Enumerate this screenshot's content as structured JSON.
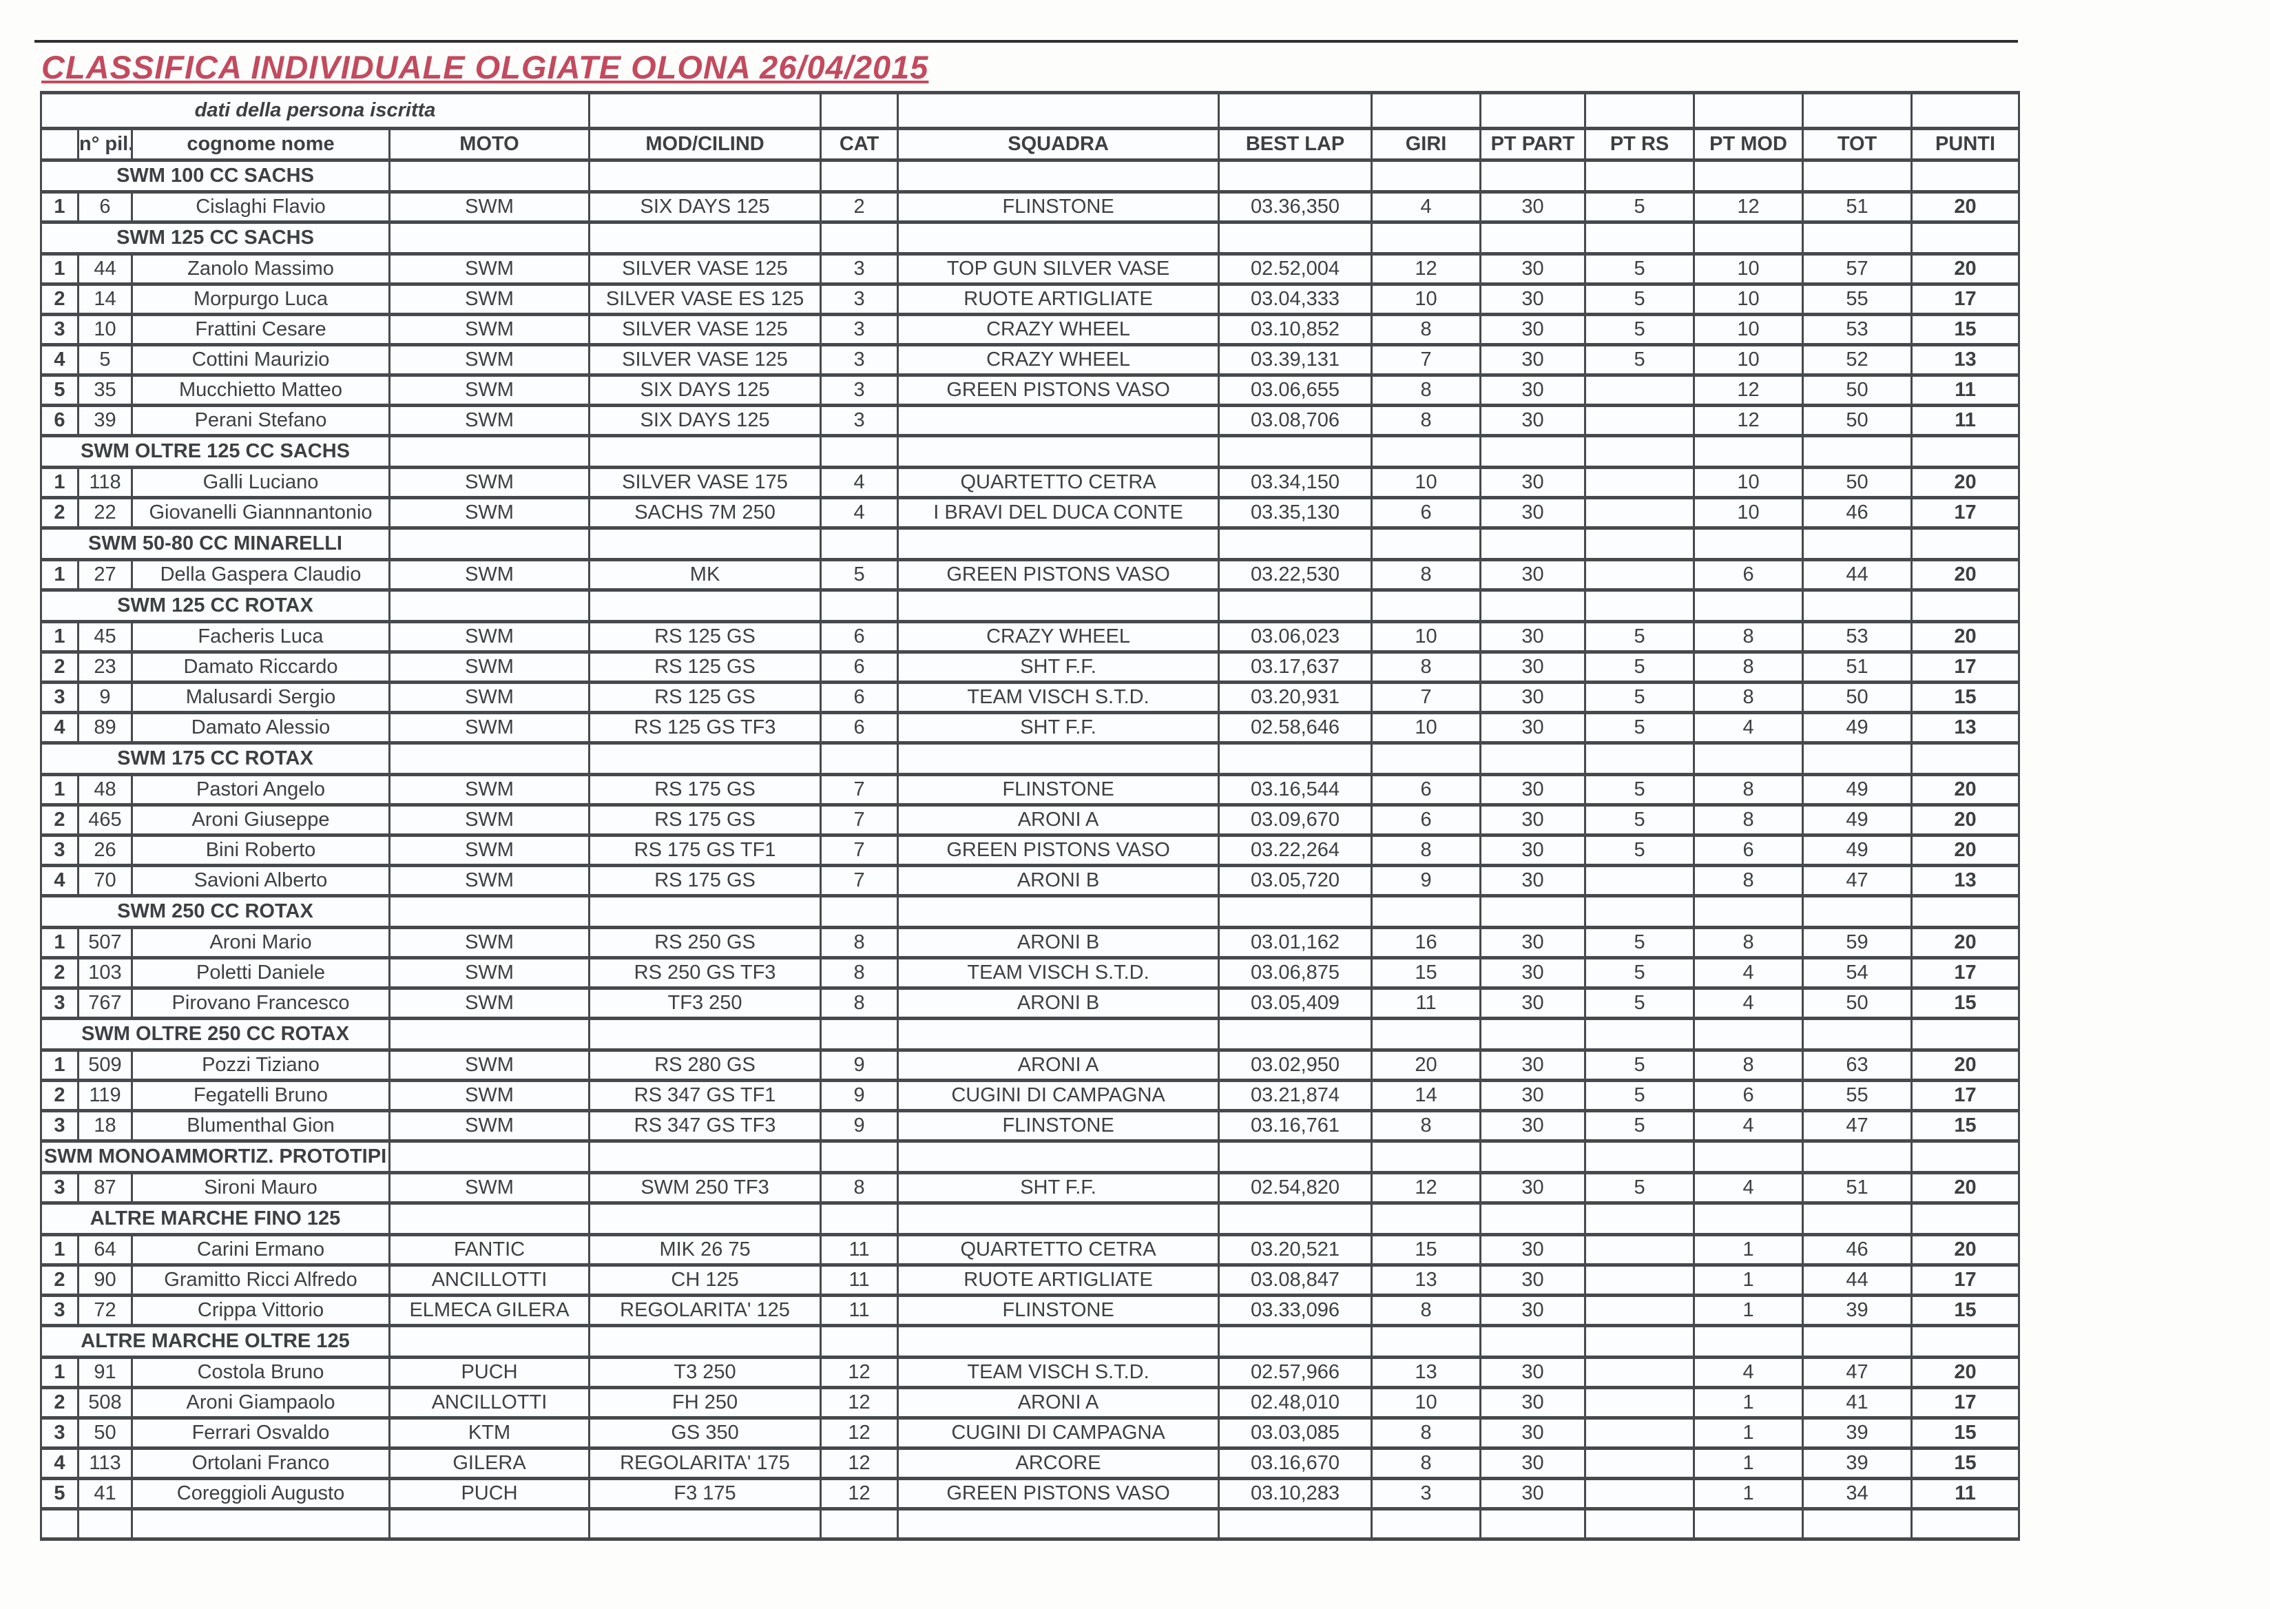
{
  "title": "CLASSIFICA INDIVIDUALE OLGIATE OLONA 26/04/2015",
  "header": {
    "group_label": "dati della persona iscritta",
    "columns": [
      "n° pil.",
      "cognome nome",
      "MOTO",
      "MOD/CILIND",
      "CAT",
      "SQUADRA",
      "BEST LAP",
      "GIRI",
      "PT PART",
      "PT RS",
      "PT MOD",
      "TOT",
      "PUNTI"
    ]
  },
  "colors": {
    "title_red": "#c34a5e",
    "section_red": "#c64b5f",
    "position_red": "#c64b5f",
    "header_blue": "#3d63b0",
    "punti_blue": "#3a69c1",
    "body_text": "#3d4043",
    "grid_border": "#46494d",
    "highlight_tan": "#e8c295"
  },
  "sections": [
    {
      "label": "SWM 100 CC SACHS",
      "rows": [
        {
          "pos": "1",
          "num": "6",
          "name": "Cislaghi Flavio",
          "moto": "SWM",
          "mod": "SIX DAYS 125",
          "cat": "2",
          "squadra": "FLINSTONE",
          "best_lap": "03.36,350",
          "giri": "4",
          "pt_part": "30",
          "pt_rs": "5",
          "pt_mod": "12",
          "tot": "51",
          "punti": "20",
          "num_highlight": false
        }
      ]
    },
    {
      "label": "SWM 125 CC SACHS",
      "rows": [
        {
          "pos": "1",
          "num": "44",
          "name": "Zanolo Massimo",
          "moto": "SWM",
          "mod": "SILVER VASE 125",
          "cat": "3",
          "squadra": "TOP GUN SILVER VASE",
          "best_lap": "02.52,004",
          "giri": "12",
          "pt_part": "30",
          "pt_rs": "5",
          "pt_mod": "10",
          "tot": "57",
          "punti": "20",
          "num_highlight": false
        },
        {
          "pos": "2",
          "num": "14",
          "name": "Morpurgo Luca",
          "moto": "SWM",
          "mod": "SILVER VASE ES 125",
          "cat": "3",
          "squadra": "RUOTE ARTIGLIATE",
          "best_lap": "03.04,333",
          "giri": "10",
          "pt_part": "30",
          "pt_rs": "5",
          "pt_mod": "10",
          "tot": "55",
          "punti": "17",
          "num_highlight": false
        },
        {
          "pos": "3",
          "num": "10",
          "name": "Frattini Cesare",
          "moto": "SWM",
          "mod": "SILVER VASE 125",
          "cat": "3",
          "squadra": "CRAZY WHEEL",
          "best_lap": "03.10,852",
          "giri": "8",
          "pt_part": "30",
          "pt_rs": "5",
          "pt_mod": "10",
          "tot": "53",
          "punti": "15",
          "num_highlight": false
        },
        {
          "pos": "4",
          "num": "5",
          "name": "Cottini Maurizio",
          "moto": "SWM",
          "mod": "SILVER VASE 125",
          "cat": "3",
          "squadra": "CRAZY WHEEL",
          "best_lap": "03.39,131",
          "giri": "7",
          "pt_part": "30",
          "pt_rs": "5",
          "pt_mod": "10",
          "tot": "52",
          "punti": "13",
          "num_highlight": false
        },
        {
          "pos": "5",
          "num": "35",
          "name": "Mucchietto Matteo",
          "moto": "SWM",
          "mod": "SIX DAYS 125",
          "cat": "3",
          "squadra": "GREEN PISTONS VASO",
          "best_lap": "03.06,655",
          "giri": "8",
          "pt_part": "30",
          "pt_rs": "",
          "pt_mod": "12",
          "tot": "50",
          "punti": "11",
          "num_highlight": false
        },
        {
          "pos": "6",
          "num": "39",
          "name": "Perani Stefano",
          "moto": "SWM",
          "mod": "SIX DAYS 125",
          "cat": "3",
          "squadra": "",
          "best_lap": "03.08,706",
          "giri": "8",
          "pt_part": "30",
          "pt_rs": "",
          "pt_mod": "12",
          "tot": "50",
          "punti": "11",
          "num_highlight": false
        }
      ]
    },
    {
      "label": "SWM OLTRE 125 CC SACHS",
      "rows": [
        {
          "pos": "1",
          "num": "118",
          "name": "Galli Luciano",
          "moto": "SWM",
          "mod": "SILVER VASE 175",
          "cat": "4",
          "squadra": "QUARTETTO CETRA",
          "best_lap": "03.34,150",
          "giri": "10",
          "pt_part": "30",
          "pt_rs": "",
          "pt_mod": "10",
          "tot": "50",
          "punti": "20",
          "num_highlight": false
        },
        {
          "pos": "2",
          "num": "22",
          "name": "Giovanelli Giannnantonio",
          "moto": "SWM",
          "mod": "SACHS 7M 250",
          "cat": "4",
          "squadra": "I BRAVI DEL DUCA CONTE",
          "best_lap": "03.35,130",
          "giri": "6",
          "pt_part": "30",
          "pt_rs": "",
          "pt_mod": "10",
          "tot": "46",
          "punti": "17",
          "num_highlight": false
        }
      ]
    },
    {
      "label": "SWM 50-80 CC MINARELLI",
      "rows": [
        {
          "pos": "1",
          "num": "27",
          "name": "Della Gaspera Claudio",
          "moto": "SWM",
          "mod": "MK",
          "cat": "5",
          "squadra": "GREEN PISTONS VASO",
          "best_lap": "03.22,530",
          "giri": "8",
          "pt_part": "30",
          "pt_rs": "",
          "pt_mod": "6",
          "tot": "44",
          "punti": "20",
          "num_highlight": false
        }
      ]
    },
    {
      "label": "SWM 125 CC ROTAX",
      "rows": [
        {
          "pos": "1",
          "num": "45",
          "name": "Facheris Luca",
          "moto": "SWM",
          "mod": "RS 125 GS",
          "cat": "6",
          "squadra": "CRAZY WHEEL",
          "best_lap": "03.06,023",
          "giri": "10",
          "pt_part": "30",
          "pt_rs": "5",
          "pt_mod": "8",
          "tot": "53",
          "punti": "20",
          "num_highlight": false
        },
        {
          "pos": "2",
          "num": "23",
          "name": "Damato Riccardo",
          "moto": "SWM",
          "mod": "RS 125 GS",
          "cat": "6",
          "squadra": "SHT F.F.",
          "best_lap": "03.17,637",
          "giri": "8",
          "pt_part": "30",
          "pt_rs": "5",
          "pt_mod": "8",
          "tot": "51",
          "punti": "17",
          "num_highlight": false
        },
        {
          "pos": "3",
          "num": "9",
          "name": "Malusardi Sergio",
          "moto": "SWM",
          "mod": "RS 125 GS",
          "cat": "6",
          "squadra": "TEAM VISCH S.T.D.",
          "best_lap": "03.20,931",
          "giri": "7",
          "pt_part": "30",
          "pt_rs": "5",
          "pt_mod": "8",
          "tot": "50",
          "punti": "15",
          "num_highlight": false
        },
        {
          "pos": "4",
          "num": "89",
          "name": "Damato Alessio",
          "moto": "SWM",
          "mod": "RS 125 GS TF3",
          "cat": "6",
          "squadra": "SHT F.F.",
          "best_lap": "02.58,646",
          "giri": "10",
          "pt_part": "30",
          "pt_rs": "5",
          "pt_mod": "4",
          "tot": "49",
          "punti": "13",
          "num_highlight": false
        }
      ]
    },
    {
      "label": "SWM 175 CC ROTAX",
      "rows": [
        {
          "pos": "1",
          "num": "48",
          "name": "Pastori Angelo",
          "moto": "SWM",
          "mod": "RS 175 GS",
          "cat": "7",
          "squadra": "FLINSTONE",
          "best_lap": "03.16,544",
          "giri": "6",
          "pt_part": "30",
          "pt_rs": "5",
          "pt_mod": "8",
          "tot": "49",
          "punti": "20",
          "num_highlight": false
        },
        {
          "pos": "2",
          "num": "465",
          "name": "Aroni Giuseppe",
          "moto": "SWM",
          "mod": "RS 175 GS",
          "cat": "7",
          "squadra": "ARONI A",
          "best_lap": "03.09,670",
          "giri": "6",
          "pt_part": "30",
          "pt_rs": "5",
          "pt_mod": "8",
          "tot": "49",
          "punti": "20",
          "num_highlight": false
        },
        {
          "pos": "3",
          "num": "26",
          "name": "Bini Roberto",
          "moto": "SWM",
          "mod": "RS 175 GS TF1",
          "cat": "7",
          "squadra": "GREEN PISTONS VASO",
          "best_lap": "03.22,264",
          "giri": "8",
          "pt_part": "30",
          "pt_rs": "5",
          "pt_mod": "6",
          "tot": "49",
          "punti": "20",
          "num_highlight": false
        },
        {
          "pos": "4",
          "num": "70",
          "name": "Savioni Alberto",
          "moto": "SWM",
          "mod": "RS 175 GS",
          "cat": "7",
          "squadra": "ARONI B",
          "best_lap": "03.05,720",
          "giri": "9",
          "pt_part": "30",
          "pt_rs": "",
          "pt_mod": "8",
          "tot": "47",
          "punti": "13",
          "num_highlight": false
        }
      ]
    },
    {
      "label": "SWM 250 CC ROTAX",
      "rows": [
        {
          "pos": "1",
          "num": "507",
          "name": "Aroni Mario",
          "moto": "SWM",
          "mod": "RS 250 GS",
          "cat": "8",
          "squadra": "ARONI B",
          "best_lap": "03.01,162",
          "giri": "16",
          "pt_part": "30",
          "pt_rs": "5",
          "pt_mod": "8",
          "tot": "59",
          "punti": "20",
          "num_highlight": false
        },
        {
          "pos": "2",
          "num": "103",
          "name": "Poletti Daniele",
          "moto": "SWM",
          "mod": "RS 250 GS TF3",
          "cat": "8",
          "squadra": "TEAM VISCH S.T.D.",
          "best_lap": "03.06,875",
          "giri": "15",
          "pt_part": "30",
          "pt_rs": "5",
          "pt_mod": "4",
          "tot": "54",
          "punti": "17",
          "num_highlight": false
        },
        {
          "pos": "3",
          "num": "767",
          "name": "Pirovano Francesco",
          "moto": "SWM",
          "mod": "TF3 250",
          "cat": "8",
          "squadra": "ARONI B",
          "best_lap": "03.05,409",
          "giri": "11",
          "pt_part": "30",
          "pt_rs": "5",
          "pt_mod": "4",
          "tot": "50",
          "punti": "15",
          "num_highlight": false
        }
      ]
    },
    {
      "label": "SWM OLTRE 250 CC ROTAX",
      "rows": [
        {
          "pos": "1",
          "num": "509",
          "name": "Pozzi Tiziano",
          "moto": "SWM",
          "mod": "RS 280 GS",
          "cat": "9",
          "squadra": "ARONI A",
          "best_lap": "03.02,950",
          "giri": "20",
          "pt_part": "30",
          "pt_rs": "5",
          "pt_mod": "8",
          "tot": "63",
          "punti": "20",
          "num_highlight": false
        },
        {
          "pos": "2",
          "num": "119",
          "name": "Fegatelli Bruno",
          "moto": "SWM",
          "mod": "RS 347 GS TF1",
          "cat": "9",
          "squadra": "CUGINI DI CAMPAGNA",
          "best_lap": "03.21,874",
          "giri": "14",
          "pt_part": "30",
          "pt_rs": "5",
          "pt_mod": "6",
          "tot": "55",
          "punti": "17",
          "num_highlight": true
        },
        {
          "pos": "3",
          "num": "18",
          "name": "Blumenthal Gion",
          "moto": "SWM",
          "mod": "RS 347 GS TF3",
          "cat": "9",
          "squadra": "FLINSTONE",
          "best_lap": "03.16,761",
          "giri": "8",
          "pt_part": "30",
          "pt_rs": "5",
          "pt_mod": "4",
          "tot": "47",
          "punti": "15",
          "num_highlight": false
        }
      ]
    },
    {
      "label": "SWM MONOAMMORTIZ. PROTOTIPI",
      "rows": [
        {
          "pos": "3",
          "num": "87",
          "name": "Sironi Mauro",
          "moto": "SWM",
          "mod": "SWM 250 TF3",
          "cat": "8",
          "squadra": "SHT F.F.",
          "best_lap": "02.54,820",
          "giri": "12",
          "pt_part": "30",
          "pt_rs": "5",
          "pt_mod": "4",
          "tot": "51",
          "punti": "20",
          "num_highlight": false
        }
      ]
    },
    {
      "label": "ALTRE MARCHE FINO 125",
      "rows": [
        {
          "pos": "1",
          "num": "64",
          "name": "Carini Ermano",
          "moto": "FANTIC",
          "mod": "MIK 26 75",
          "cat": "11",
          "squadra": "QUARTETTO CETRA",
          "best_lap": "03.20,521",
          "giri": "15",
          "pt_part": "30",
          "pt_rs": "",
          "pt_mod": "1",
          "tot": "46",
          "punti": "20",
          "num_highlight": false
        },
        {
          "pos": "2",
          "num": "90",
          "name": "Gramitto Ricci Alfredo",
          "moto": "ANCILLOTTI",
          "mod": "CH 125",
          "cat": "11",
          "squadra": "RUOTE ARTIGLIATE",
          "best_lap": "03.08,847",
          "giri": "13",
          "pt_part": "30",
          "pt_rs": "",
          "pt_mod": "1",
          "tot": "44",
          "punti": "17",
          "num_highlight": false
        },
        {
          "pos": "3",
          "num": "72",
          "name": "Crippa Vittorio",
          "moto": "ELMECA GILERA",
          "mod": "REGOLARITA' 125",
          "cat": "11",
          "squadra": "FLINSTONE",
          "best_lap": "03.33,096",
          "giri": "8",
          "pt_part": "30",
          "pt_rs": "",
          "pt_mod": "1",
          "tot": "39",
          "punti": "15",
          "num_highlight": false
        }
      ]
    },
    {
      "label": "ALTRE MARCHE OLTRE 125",
      "rows": [
        {
          "pos": "1",
          "num": "91",
          "name": "Costola Bruno",
          "moto": "PUCH",
          "mod": "T3 250",
          "cat": "12",
          "squadra": "TEAM VISCH S.T.D.",
          "best_lap": "02.57,966",
          "giri": "13",
          "pt_part": "30",
          "pt_rs": "",
          "pt_mod": "4",
          "tot": "47",
          "punti": "20",
          "num_highlight": false
        },
        {
          "pos": "2",
          "num": "508",
          "name": "Aroni Giampaolo",
          "moto": "ANCILLOTTI",
          "mod": "FH 250",
          "cat": "12",
          "squadra": "ARONI A",
          "best_lap": "02.48,010",
          "giri": "10",
          "pt_part": "30",
          "pt_rs": "",
          "pt_mod": "1",
          "tot": "41",
          "punti": "17",
          "num_highlight": false
        },
        {
          "pos": "3",
          "num": "50",
          "name": "Ferrari Osvaldo",
          "moto": "KTM",
          "mod": "GS 350",
          "cat": "12",
          "squadra": "CUGINI DI CAMPAGNA",
          "best_lap": "03.03,085",
          "giri": "8",
          "pt_part": "30",
          "pt_rs": "",
          "pt_mod": "1",
          "tot": "39",
          "punti": "15",
          "num_highlight": false
        },
        {
          "pos": "4",
          "num": "113",
          "name": "Ortolani Franco",
          "moto": "GILERA",
          "mod": "REGOLARITA' 175",
          "cat": "12",
          "squadra": "ARCORE",
          "best_lap": "03.16,670",
          "giri": "8",
          "pt_part": "30",
          "pt_rs": "",
          "pt_mod": "1",
          "tot": "39",
          "punti": "15",
          "num_highlight": true
        },
        {
          "pos": "5",
          "num": "41",
          "name": "Coreggioli Augusto",
          "moto": "PUCH",
          "mod": "F3 175",
          "cat": "12",
          "squadra": "GREEN PISTONS VASO",
          "best_lap": "03.10,283",
          "giri": "3",
          "pt_part": "30",
          "pt_rs": "",
          "pt_mod": "1",
          "tot": "34",
          "punti": "11",
          "num_highlight": false
        }
      ]
    }
  ],
  "trailing_empty_row": true
}
